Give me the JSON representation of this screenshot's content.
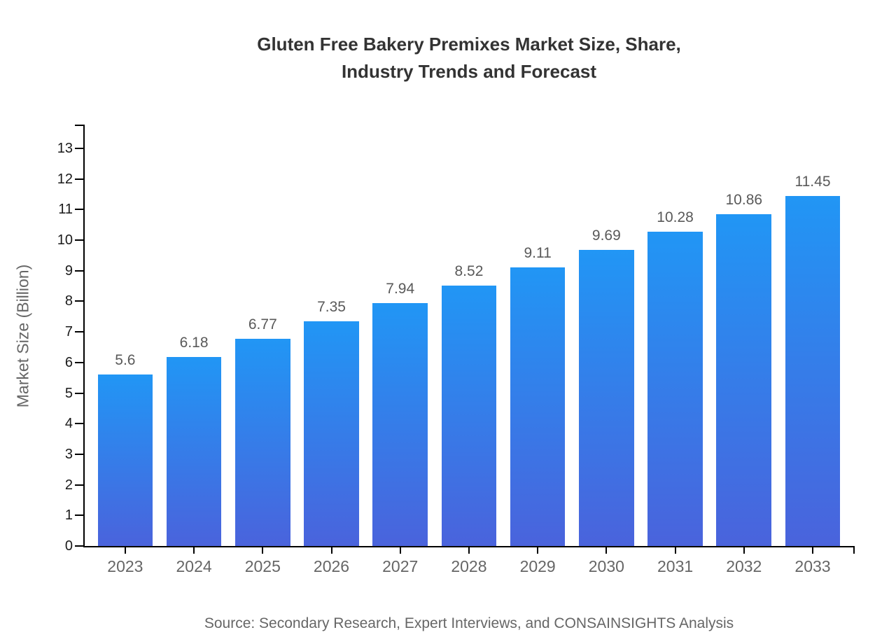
{
  "page": {
    "background": "#ffffff"
  },
  "chart_data": {
    "type": "bar",
    "title_lines": [
      "Gluten Free Bakery Premixes Market Size, Share,",
      "Industry Trends and Forecast"
    ],
    "ylabel": "Market Size (Billion)",
    "xlabel": "",
    "source_note": "Source: Secondary Research, Expert Interviews, and CONSAINSIGHTS Analysis",
    "categories": [
      "2023",
      "2024",
      "2025",
      "2026",
      "2027",
      "2028",
      "2029",
      "2030",
      "2031",
      "2032",
      "2033"
    ],
    "values": [
      5.6,
      6.18,
      6.77,
      7.35,
      7.94,
      8.52,
      9.11,
      9.69,
      10.28,
      10.86,
      11.45
    ],
    "yticks": [
      0,
      1,
      2,
      3,
      4,
      5,
      6,
      7,
      8,
      9,
      10,
      11,
      12,
      13
    ],
    "ylim": [
      0,
      13.77
    ],
    "grid": false,
    "legend": "none",
    "data_labels": true,
    "colors": {
      "bar_gradient_top": "#2196F5",
      "bar_gradient_bottom": "#4A63DC",
      "axis": "#000000",
      "ytick_label": "#1a1a1a",
      "xtick_label": "#666666",
      "value_label": "#595959",
      "title": "#333333",
      "ylabel": "#666666",
      "source": "#666666"
    }
  }
}
